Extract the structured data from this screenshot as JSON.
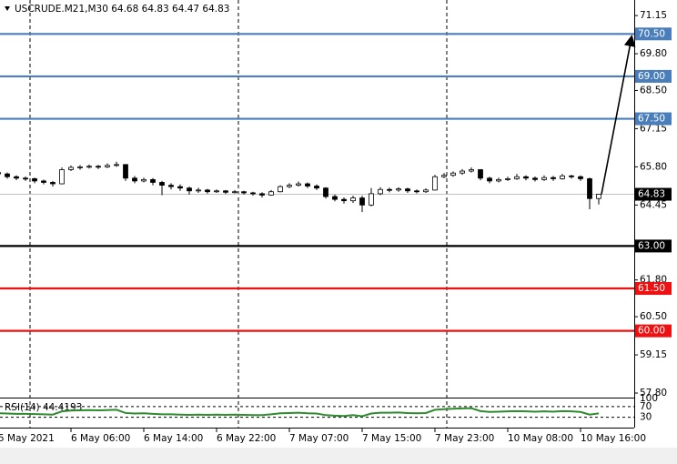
{
  "chart_data": {
    "type": "candlestick",
    "title": "USCRUDE.M21,M30  64.68 64.83 64.47 64.83",
    "up_color": "#ffffff",
    "down_color": "#000000",
    "candles": [
      [
        65.6,
        65.7,
        65.48,
        65.55
      ],
      [
        65.55,
        65.6,
        65.38,
        65.45
      ],
      [
        65.45,
        65.5,
        65.33,
        65.4
      ],
      [
        65.4,
        65.46,
        65.3,
        65.38
      ],
      [
        65.38,
        65.42,
        65.22,
        65.3
      ],
      [
        65.3,
        65.35,
        65.18,
        65.25
      ],
      [
        65.25,
        65.3,
        65.1,
        65.2
      ],
      [
        65.2,
        65.78,
        65.18,
        65.7
      ],
      [
        65.7,
        65.85,
        65.65,
        65.78
      ],
      [
        65.78,
        65.86,
        65.7,
        65.8
      ],
      [
        65.8,
        65.88,
        65.74,
        65.82
      ],
      [
        65.82,
        65.87,
        65.72,
        65.8
      ],
      [
        65.8,
        65.92,
        65.76,
        65.85
      ],
      [
        65.85,
        65.98,
        65.8,
        65.88
      ],
      [
        65.88,
        65.9,
        65.3,
        65.4
      ],
      [
        65.4,
        65.48,
        65.22,
        65.3
      ],
      [
        65.3,
        65.42,
        65.25,
        65.35
      ],
      [
        65.35,
        65.4,
        65.15,
        65.25
      ],
      [
        65.25,
        65.3,
        64.8,
        65.15
      ],
      [
        65.15,
        65.22,
        65.0,
        65.1
      ],
      [
        65.1,
        65.18,
        64.95,
        65.05
      ],
      [
        65.05,
        65.1,
        64.82,
        64.95
      ],
      [
        64.95,
        65.06,
        64.88,
        64.98
      ],
      [
        64.98,
        65.02,
        64.85,
        64.92
      ],
      [
        64.92,
        65.0,
        64.88,
        64.95
      ],
      [
        64.95,
        64.98,
        64.84,
        64.9
      ],
      [
        64.9,
        64.98,
        64.86,
        64.92
      ],
      [
        64.92,
        64.95,
        64.82,
        64.88
      ],
      [
        64.88,
        64.92,
        64.78,
        64.85
      ],
      [
        64.85,
        64.9,
        64.72,
        64.8
      ],
      [
        64.8,
        64.98,
        64.78,
        64.92
      ],
      [
        64.92,
        65.15,
        64.9,
        65.1
      ],
      [
        65.1,
        65.22,
        65.05,
        65.15
      ],
      [
        65.15,
        65.28,
        65.1,
        65.2
      ],
      [
        65.2,
        65.25,
        65.05,
        65.12
      ],
      [
        65.12,
        65.18,
        64.98,
        65.05
      ],
      [
        65.05,
        65.08,
        64.68,
        64.75
      ],
      [
        64.75,
        64.82,
        64.58,
        64.65
      ],
      [
        64.65,
        64.72,
        64.5,
        64.6
      ],
      [
        64.6,
        64.78,
        64.52,
        64.7
      ],
      [
        64.7,
        64.78,
        64.2,
        64.45
      ],
      [
        64.45,
        65.05,
        64.4,
        64.85
      ],
      [
        64.85,
        65.08,
        64.8,
        65.0
      ],
      [
        65.0,
        65.06,
        64.9,
        64.98
      ],
      [
        64.98,
        65.08,
        64.92,
        65.02
      ],
      [
        65.02,
        65.06,
        64.88,
        64.95
      ],
      [
        64.95,
        65.0,
        64.86,
        64.92
      ],
      [
        64.92,
        65.04,
        64.88,
        64.98
      ],
      [
        64.98,
        65.52,
        64.96,
        65.45
      ],
      [
        65.45,
        65.58,
        65.4,
        65.5
      ],
      [
        65.5,
        65.64,
        65.45,
        65.58
      ],
      [
        65.58,
        65.72,
        65.52,
        65.65
      ],
      [
        65.65,
        65.78,
        65.6,
        65.7
      ],
      [
        65.7,
        65.72,
        65.32,
        65.4
      ],
      [
        65.4,
        65.45,
        65.22,
        65.3
      ],
      [
        65.3,
        65.42,
        65.25,
        65.35
      ],
      [
        65.35,
        65.45,
        65.3,
        65.38
      ],
      [
        65.38,
        65.55,
        65.34,
        65.45
      ],
      [
        65.45,
        65.5,
        65.32,
        65.4
      ],
      [
        65.4,
        65.46,
        65.28,
        65.35
      ],
      [
        65.35,
        65.5,
        65.3,
        65.42
      ],
      [
        65.42,
        65.48,
        65.3,
        65.38
      ],
      [
        65.38,
        65.55,
        65.35,
        65.48
      ],
      [
        65.48,
        65.52,
        65.38,
        65.45
      ],
      [
        65.45,
        65.5,
        65.3,
        65.38
      ],
      [
        65.38,
        65.42,
        64.3,
        64.68
      ],
      [
        64.68,
        64.83,
        64.47,
        64.83
      ]
    ],
    "xlim": [
      0.2,
      69.9
    ],
    "xticks": [
      {
        "value": 0,
        "label": "5 May 2021"
      },
      {
        "value": 8,
        "label": "6 May 06:00"
      },
      {
        "value": 16,
        "label": "6 May 14:00"
      },
      {
        "value": 24,
        "label": "6 May 22:00"
      },
      {
        "value": 32,
        "label": "7 May 07:00"
      },
      {
        "value": 40,
        "label": "7 May 15:00"
      },
      {
        "value": 48,
        "label": "7 May 23:00"
      },
      {
        "value": 56,
        "label": "10 May 08:00"
      },
      {
        "value": 64,
        "label": "10 May 16:00"
      }
    ],
    "ylim": [
      57.64,
      71.7
    ],
    "yticks": [
      71.15,
      {
        "value": 69.8,
        "label": "69.80"
      },
      {
        "value": 68.5,
        "label": "68.50"
      },
      67.15,
      {
        "value": 65.8,
        "label": "65.80"
      },
      64.45,
      {
        "value": 61.8,
        "label": "61.80"
      },
      {
        "value": 60.5,
        "label": "60.50"
      },
      59.15,
      {
        "value": 57.8,
        "label": "57.80"
      }
    ],
    "levels": [
      {
        "value": 70.5,
        "label": "70.50",
        "color": "#4a7ebb"
      },
      {
        "value": 69,
        "label": "69.00",
        "color": "#4a7ebb"
      },
      {
        "value": 67.5,
        "label": "67.50",
        "color": "#4a7ebb"
      },
      {
        "value": 63,
        "label": "63.00",
        "color": "#000000"
      },
      {
        "value": 61.5,
        "label": "61.50",
        "color": "#ee1111"
      },
      {
        "value": 60,
        "label": "60.00",
        "color": "#ee1111"
      }
    ],
    "last_price": 64.83,
    "rsi": {
      "label": "RSI(14) 44.4193",
      "color": "#2e8b2e",
      "ylim": [
        -5,
        100
      ],
      "yticks": [
        100,
        70,
        30
      ],
      "values": [
        45,
        44,
        43,
        43,
        42,
        41,
        40,
        52,
        55,
        56,
        57,
        56,
        57,
        58,
        46,
        44,
        45,
        43,
        41,
        41,
        40,
        39,
        40,
        39,
        40,
        39,
        40,
        39,
        38,
        38,
        41,
        45,
        46,
        47,
        45,
        44,
        38,
        36,
        35,
        38,
        34,
        44,
        47,
        47,
        48,
        46,
        45,
        46,
        58,
        60,
        62,
        63,
        64,
        53,
        50,
        51,
        52,
        53,
        52,
        51,
        52,
        51,
        53,
        52,
        50,
        40,
        44.42
      ]
    }
  }
}
